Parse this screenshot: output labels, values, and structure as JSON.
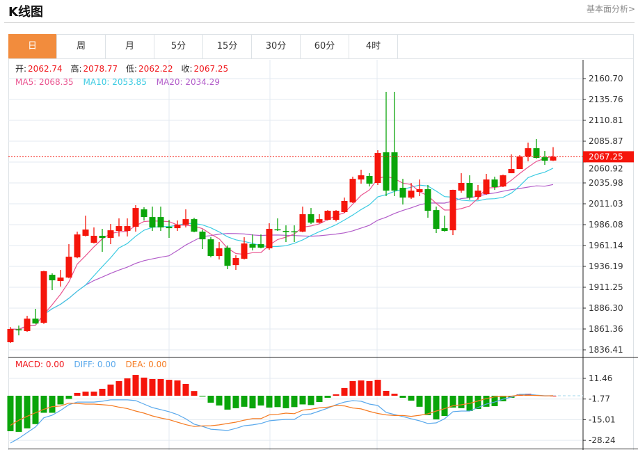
{
  "header": {
    "title": "K线图",
    "fundamental_link": "基本面分析>"
  },
  "tabs": [
    {
      "label": "日",
      "active": true
    },
    {
      "label": "周"
    },
    {
      "label": "月"
    },
    {
      "label": "5分"
    },
    {
      "label": "15分"
    },
    {
      "label": "30分"
    },
    {
      "label": "60分"
    },
    {
      "label": "4时"
    }
  ],
  "ohlc_info": {
    "open_label": "开:",
    "open": "2062.74",
    "high_label": "高:",
    "high": "2078.77",
    "low_label": "低:",
    "low": "2062.22",
    "close_label": "收:",
    "close": "2067.25"
  },
  "ma_info": {
    "ma5": "MA5: 2068.35",
    "ma10": "MA10: 2053.85",
    "ma20": "MA20: 2034.29"
  },
  "macd_info": {
    "macd": "MACD: 0.00",
    "diff": "DIFF: 0.00",
    "dea": "DEA: 0.00"
  },
  "colors": {
    "up": "#f5150b",
    "down": "#0aa50a",
    "ma5": "#ea5590",
    "ma10": "#3ccbe2",
    "ma20": "#b25cc9",
    "diff": "#5aa9ec",
    "dea": "#f57b22",
    "accent": "#f28c3d"
  },
  "chart_data": {
    "type": "candlestick",
    "price_axis": {
      "ticks": [
        "2160.70",
        "2135.76",
        "2110.81",
        "2085.87",
        "2060.92",
        "2035.98",
        "2011.03",
        "1986.08",
        "1961.14",
        "1936.19",
        "1911.25",
        "1886.30",
        "1861.36",
        "1836.41"
      ],
      "range": [
        1836.41,
        2160.7
      ]
    },
    "last_price": "2067.25",
    "macd_axis": {
      "ticks": [
        "11.46",
        "-1.77",
        "-15.01",
        "-28.24"
      ]
    },
    "candles": [
      [
        1845.6,
        1863.8,
        1844.7,
        1861.4
      ],
      [
        1861,
        1865.5,
        1853.8,
        1860.5
      ],
      [
        1858.9,
        1877.2,
        1858.0,
        1873.8
      ],
      [
        1873.8,
        1885.5,
        1867.5,
        1868.0
      ],
      [
        1868.8,
        1931,
        1867.5,
        1930.4
      ],
      [
        1926.2,
        1927.9,
        1907.9,
        1919.6
      ],
      [
        1918.8,
        1932.0,
        1912.1,
        1922.9
      ],
      [
        1922.9,
        1962.8,
        1922,
        1947.8
      ],
      [
        1947,
        1977.8,
        1946,
        1974.4
      ],
      [
        1972.8,
        1996.9,
        1972,
        1980.3
      ],
      [
        1964.5,
        1982.8,
        1963.6,
        1972.8
      ],
      [
        1972.8,
        1981.1,
        1953.7,
        1970.3
      ],
      [
        1970.3,
        1986.9,
        1962.8,
        1979.4
      ],
      [
        1978.6,
        1993.6,
        1972,
        1984.4
      ],
      [
        1978.6,
        1993.6,
        1972,
        1984.4
      ],
      [
        1983.6,
        2009.4,
        1977.8,
        2006.0
      ],
      [
        2004.4,
        2006.9,
        1991.1,
        1995.2
      ],
      [
        1995.2,
        2007.7,
        1978.6,
        1982.8
      ],
      [
        1995.2,
        2007.7,
        1978.6,
        1982.8
      ],
      [
        1983.6,
        1991.9,
        1970.3,
        1981.9
      ],
      [
        1981.9,
        1991.1,
        1978.6,
        1986.1
      ],
      [
        1986.1,
        2004.4,
        1982.8,
        1992.7
      ],
      [
        1992.7,
        1994.4,
        1977,
        1977.8
      ],
      [
        1977.8,
        1980.3,
        1957.0,
        1968.6
      ],
      [
        1968.6,
        1971.1,
        1947,
        1948.7
      ],
      [
        1948.7,
        1965.3,
        1944.5,
        1957.8
      ],
      [
        1958.6,
        1961.1,
        1932.9,
        1937.0
      ],
      [
        1937.8,
        1949.5,
        1932,
        1946.2
      ],
      [
        1945.4,
        1971.1,
        1944.5,
        1963.6
      ],
      [
        1962.8,
        1974.4,
        1955.3,
        1958.6
      ],
      [
        1962.8,
        1974.4,
        1957.8,
        1958.6
      ],
      [
        1957.8,
        1987.8,
        1956.1,
        1981.1
      ],
      [
        1980.6,
        1993.6,
        1978.6,
        1979.8
      ],
      [
        1978.6,
        1985.3,
        1965.3,
        1977.8
      ],
      [
        1978.2,
        1985.3,
        1965.3,
        1977.8
      ],
      [
        1977.8,
        2007.7,
        1977,
        1998.6
      ],
      [
        1998.6,
        2006.0,
        1986.9,
        1988.6
      ],
      [
        1988.6,
        1998.6,
        1987.8,
        1992.7
      ],
      [
        1991.9,
        2003.5,
        1991.1,
        2002.7
      ],
      [
        1991.9,
        2003.5,
        1990,
        2002.7
      ],
      [
        2001.1,
        2018.5,
        2000.2,
        2014.4
      ],
      [
        2012.7,
        2043.5,
        2011.9,
        2040.9
      ],
      [
        2040.1,
        2051.8,
        2035.1,
        2045.1
      ],
      [
        2044.3,
        2047.6,
        2031.8,
        2035.1
      ],
      [
        2036.0,
        2075.1,
        2033.5,
        2071.7
      ],
      [
        2072.6,
        2144.9,
        2020.2,
        2026.8
      ],
      [
        2072.6,
        2144.9,
        2020.2,
        2026.8
      ],
      [
        2030.2,
        2040.9,
        2010.2,
        2018.5
      ],
      [
        2018.5,
        2036.0,
        2016.9,
        2026.8
      ],
      [
        2025.2,
        2040.1,
        2020.2,
        2028.5
      ],
      [
        2028.5,
        2033.5,
        1994.4,
        2002.7
      ],
      [
        2003.5,
        2007.7,
        1976.1,
        1981.1
      ],
      [
        1981.9,
        1996.9,
        1977.8,
        1978.6
      ],
      [
        1979.4,
        2027.9,
        1973.6,
        2027.7
      ],
      [
        2026.8,
        2047.6,
        2024.3,
        2036.0
      ],
      [
        2036.0,
        2045.1,
        2016.0,
        2018.5
      ],
      [
        2019.3,
        2033.5,
        2016.0,
        2026.8
      ],
      [
        2022.7,
        2046.8,
        2021.8,
        2040.1
      ],
      [
        2040.1,
        2043.5,
        2027.7,
        2031.0
      ],
      [
        2031.8,
        2045.9,
        2031.0,
        2045.1
      ],
      [
        2047.6,
        2070.1,
        2047.6,
        2052.6
      ],
      [
        2052.6,
        2069.2,
        2052.6,
        2067.6
      ],
      [
        2067.6,
        2084.2,
        2061.8,
        2077.5
      ],
      [
        2077.5,
        2088.4,
        2065.1,
        2065.9
      ],
      [
        2066.7,
        2074.2,
        2057.6,
        2062.6
      ],
      [
        2062.74,
        2078.77,
        2062.22,
        2067.25
      ]
    ],
    "macd_hist": [
      -22.5,
      -22.9,
      -20.7,
      -18,
      -10.8,
      -10.8,
      -5.5,
      -2,
      1.8,
      2.6,
      2.6,
      4.4,
      7.1,
      9.3,
      11,
      13.2,
      11.5,
      10.6,
      10.6,
      10.1,
      9.7,
      7.5,
      3,
      -0.5,
      -4.4,
      -6.2,
      -8.8,
      -7.9,
      -7,
      -8,
      -6.2,
      -7.5,
      -7.2,
      -7.9,
      -7.2,
      -5.5,
      -5.9,
      -4,
      -1.3,
      0.9,
      4.9,
      9.3,
      9.7,
      9.3,
      10.1,
      3.1,
      1.3,
      -1.3,
      -3.1,
      -7,
      -12.3,
      -15,
      -12.8,
      -7.5,
      -7.9,
      -9.7,
      -8.4,
      -7,
      -6.6,
      -3.5,
      -1.3,
      0.9,
      1.3,
      0.4,
      0.2,
      0
    ],
    "diff": [
      -30,
      -27,
      -23.4,
      -19.8,
      -14,
      -12.3,
      -9.3,
      -5.7,
      -4,
      -4,
      -4,
      -3.5,
      -2.6,
      -2.6,
      -2.6,
      -3.1,
      -5.3,
      -7.5,
      -8.8,
      -10.1,
      -11.9,
      -14.6,
      -18,
      -19.4,
      -21.2,
      -21.6,
      -22,
      -20.7,
      -19,
      -18.5,
      -17.6,
      -15.9,
      -15.4,
      -15,
      -15,
      -11.9,
      -11.5,
      -9.7,
      -7.9,
      -5.7,
      -4,
      -3.1,
      -3.5,
      -5.3,
      -6.2,
      -10.6,
      -11.9,
      -13.2,
      -14.6,
      -15.9,
      -17.6,
      -17.2,
      -14.6,
      -10.1,
      -9.7,
      -9.7,
      -7.5,
      -5.3,
      -4,
      -2.2,
      -0.9,
      0.9,
      0.9,
      0.4,
      0,
      0
    ]
  }
}
